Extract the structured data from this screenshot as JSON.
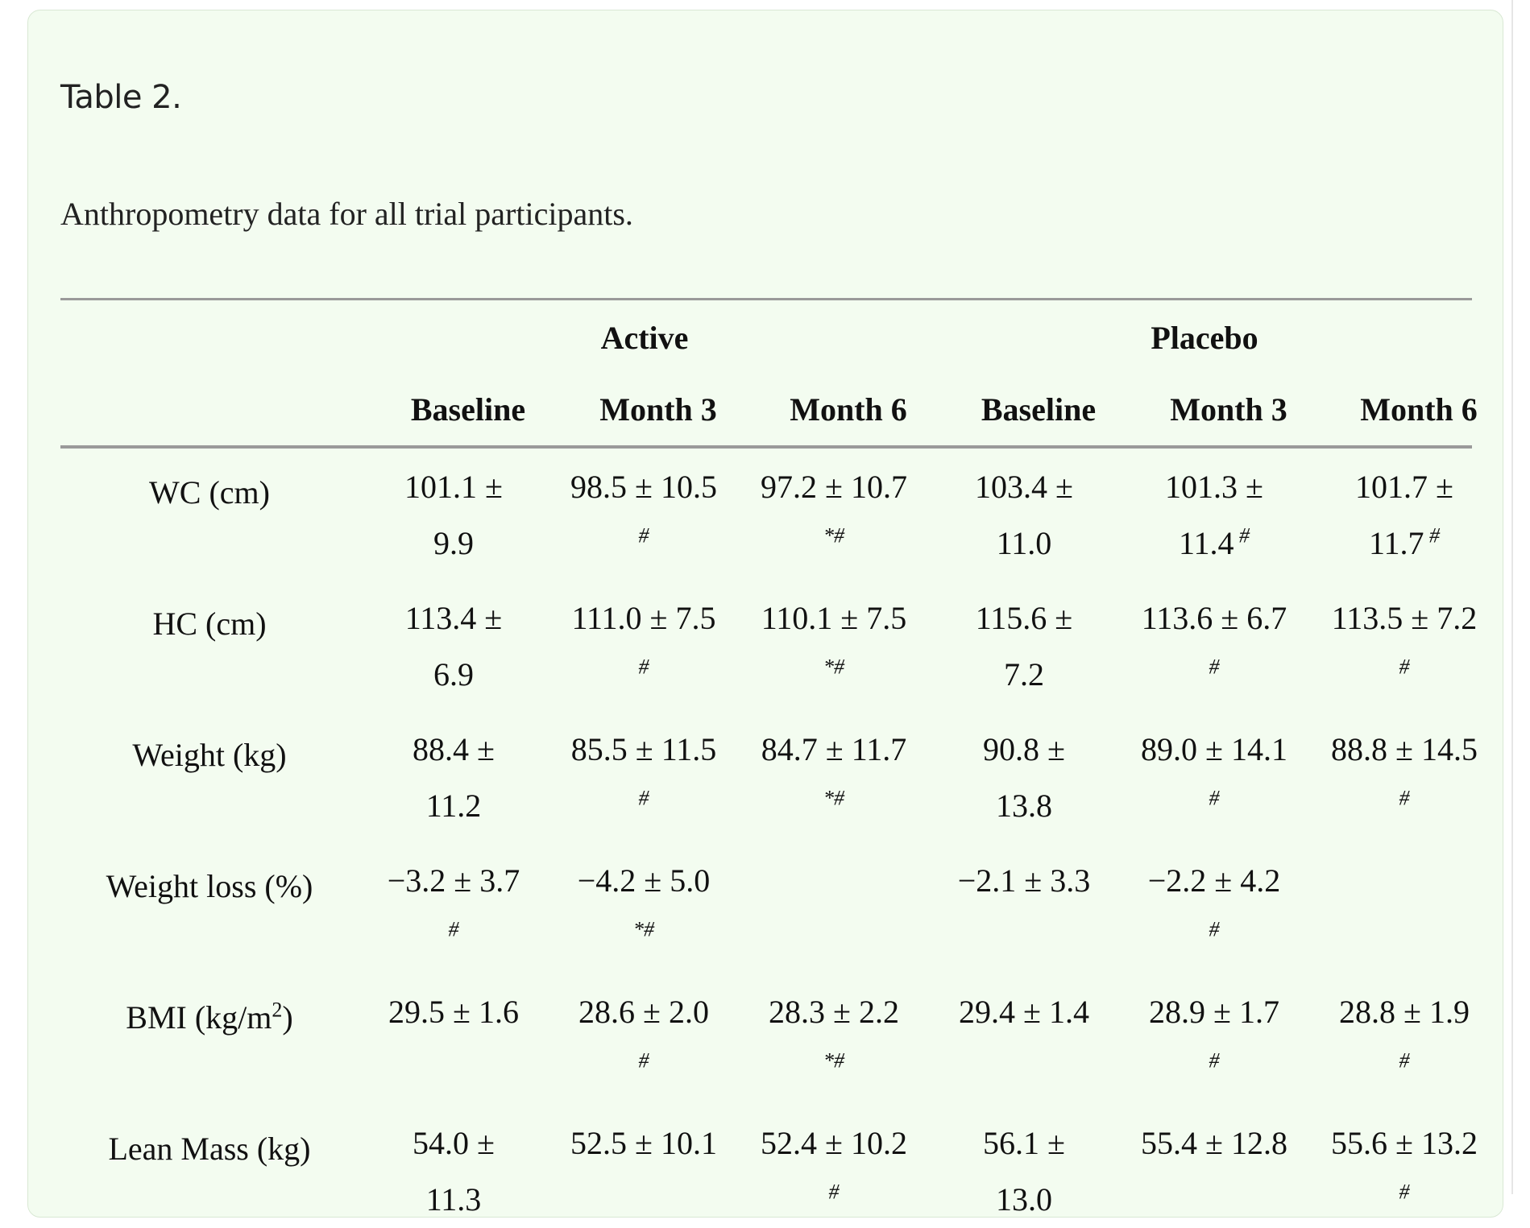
{
  "caption": "Table 2.",
  "subtitle": "Anthropometry data for all trial participants.",
  "groups": [
    "Active",
    "Placebo"
  ],
  "columns": [
    "Baseline",
    "Month 3",
    "Month 6",
    "Baseline",
    "Month 3",
    "Month 6"
  ],
  "rows": [
    {
      "label": "WC (cm)",
      "cells": [
        {
          "line1": "101.1 ±",
          "line2": "9.9",
          "mark": ""
        },
        {
          "line1": "98.5 ± 10.5",
          "line2": "",
          "mark": "#"
        },
        {
          "line1": "97.2 ± 10.7",
          "line2": "",
          "mark": "*#"
        },
        {
          "line1": "103.4 ±",
          "line2": "11.0",
          "mark": ""
        },
        {
          "line1": "101.3 ±",
          "line2": "11.4",
          "mark": "#"
        },
        {
          "line1": "101.7 ±",
          "line2": "11.7",
          "mark": "#"
        }
      ]
    },
    {
      "label": "HC (cm)",
      "cells": [
        {
          "line1": "113.4 ±",
          "line2": "6.9",
          "mark": ""
        },
        {
          "line1": "111.0 ± 7.5",
          "line2": "",
          "mark": "#"
        },
        {
          "line1": "110.1 ± 7.5",
          "line2": "",
          "mark": "*#"
        },
        {
          "line1": "115.6 ±",
          "line2": "7.2",
          "mark": ""
        },
        {
          "line1": "113.6 ± 6.7",
          "line2": "",
          "mark": "#"
        },
        {
          "line1": "113.5 ± 7.2",
          "line2": "",
          "mark": "#"
        }
      ]
    },
    {
      "label": "Weight (kg)",
      "cells": [
        {
          "line1": "88.4 ±",
          "line2": "11.2",
          "mark": ""
        },
        {
          "line1": "85.5 ± 11.5",
          "line2": "",
          "mark": "#"
        },
        {
          "line1": "84.7 ± 11.7",
          "line2": "",
          "mark": "*#"
        },
        {
          "line1": "90.8 ±",
          "line2": "13.8",
          "mark": ""
        },
        {
          "line1": "89.0 ± 14.1",
          "line2": "",
          "mark": "#"
        },
        {
          "line1": "88.8 ± 14.5",
          "line2": "",
          "mark": "#"
        }
      ]
    },
    {
      "label": "Weight loss (%)",
      "cells": [
        {
          "line1": "−3.2 ± 3.7",
          "line2": "",
          "mark": "#"
        },
        {
          "line1": "−4.2 ± 5.0",
          "line2": "",
          "mark": "*#"
        },
        {
          "line1": "",
          "line2": "",
          "mark": ""
        },
        {
          "line1": "−2.1 ± 3.3",
          "line2": "",
          "mark": ""
        },
        {
          "line1": "−2.2 ± 4.2",
          "line2": "",
          "mark": "#"
        },
        {
          "line1": "",
          "line2": "",
          "mark": ""
        }
      ]
    },
    {
      "label_main": "BMI (kg/m",
      "label_sup": "2",
      "label_end": ")",
      "cells": [
        {
          "line1": "29.5 ± 1.6",
          "line2": "",
          "mark": ""
        },
        {
          "line1": "28.6 ± 2.0",
          "line2": "",
          "mark": "#"
        },
        {
          "line1": "28.3 ± 2.2",
          "line2": "",
          "mark": "*#"
        },
        {
          "line1": "29.4 ± 1.4",
          "line2": "",
          "mark": ""
        },
        {
          "line1": "28.9 ± 1.7",
          "line2": "",
          "mark": "#"
        },
        {
          "line1": "28.8 ± 1.9",
          "line2": "",
          "mark": "#"
        }
      ]
    },
    {
      "label": "Lean Mass (kg)",
      "cells": [
        {
          "line1": "54.0 ±",
          "line2": "11.3",
          "mark": ""
        },
        {
          "line1": "52.5 ± 10.1",
          "line2": "",
          "mark": ""
        },
        {
          "line1": "52.4 ± 10.2",
          "line2": "",
          "mark": "#"
        },
        {
          "line1": "56.1 ±",
          "line2": "13.0",
          "mark": ""
        },
        {
          "line1": "55.4 ± 12.8",
          "line2": "",
          "mark": ""
        },
        {
          "line1": "55.6 ± 13.2",
          "line2": "",
          "mark": "#"
        }
      ]
    }
  ]
}
